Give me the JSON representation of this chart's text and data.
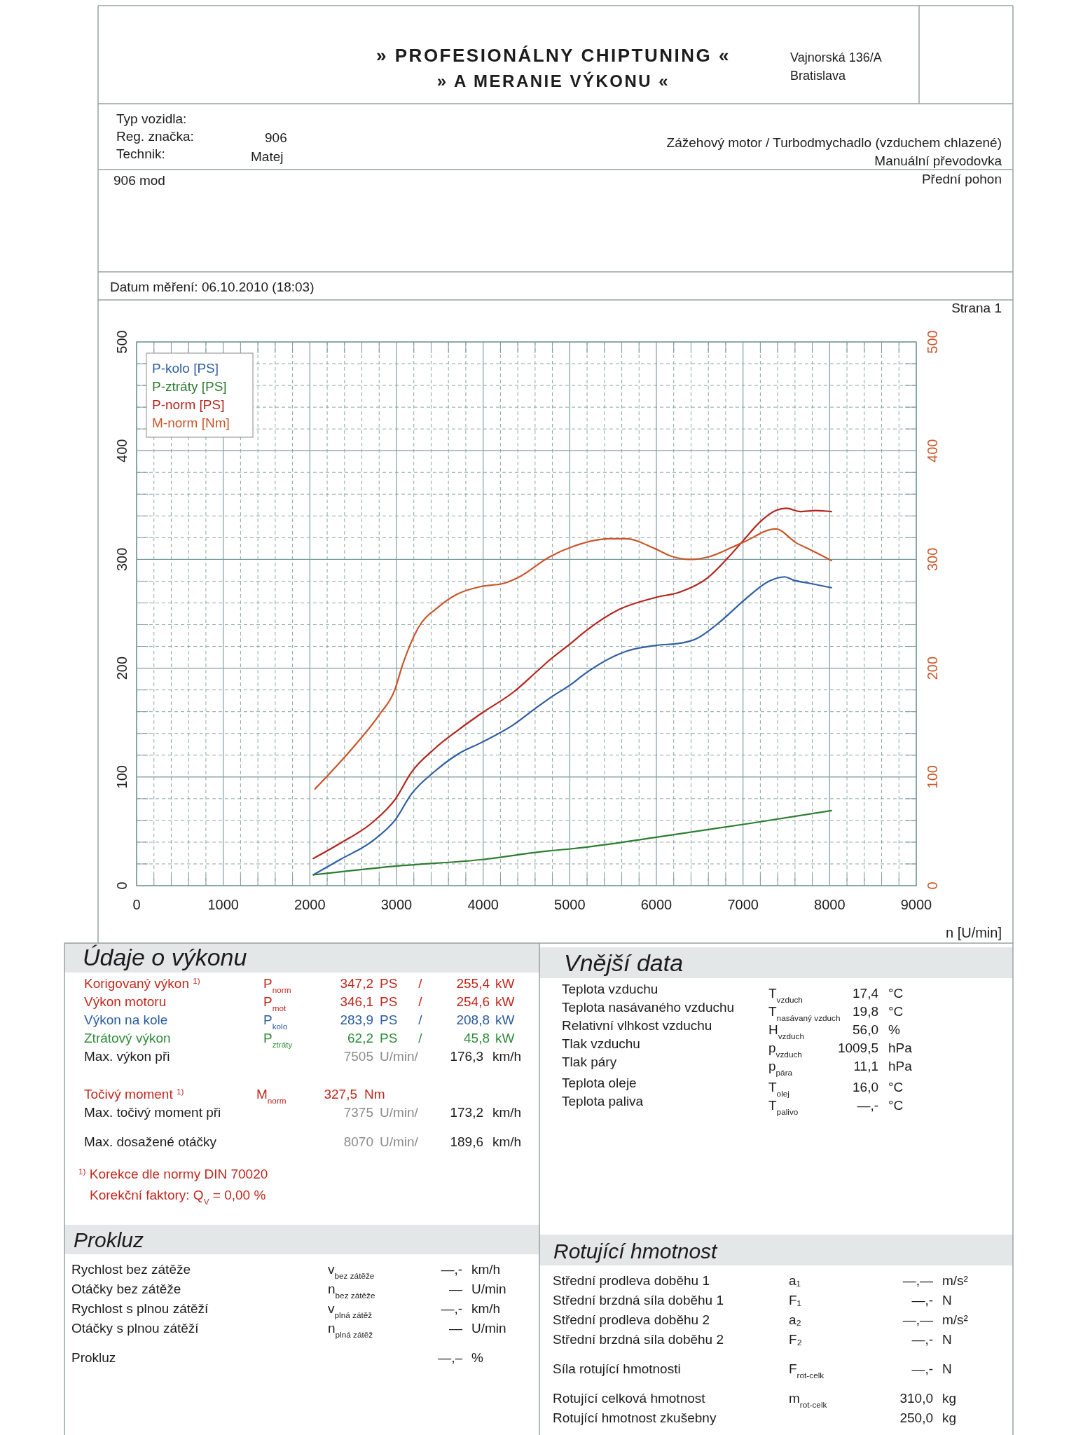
{
  "chart_data": {
    "type": "line",
    "title": "» PROFESIONÁLNY CHIPTUNING «",
    "subtitle": "» A MERANIE VÝKONU «",
    "xlabel": "n [U/min]",
    "xlim": [
      0,
      9000
    ],
    "xticks": [
      0,
      {
        "value": 200,
        "label": null
      },
      {
        "value": 400,
        "label": null
      },
      {
        "value": 600,
        "label": null
      },
      {
        "value": 800,
        "label": null
      },
      1000,
      {
        "value": 1200,
        "label": null
      },
      {
        "value": 1400,
        "label": null
      },
      {
        "value": 1600,
        "label": null
      },
      {
        "value": 1800,
        "label": null
      },
      2000,
      {
        "value": 2200,
        "label": null
      },
      {
        "value": 2400,
        "label": null
      },
      {
        "value": 2600,
        "label": null
      },
      {
        "value": 2800,
        "label": null
      },
      3000,
      {
        "value": 3200,
        "label": null
      },
      {
        "value": 3400,
        "label": null
      },
      {
        "value": 3600,
        "label": null
      },
      {
        "value": 3800,
        "label": null
      },
      4000,
      {
        "value": 4200,
        "label": null
      },
      {
        "value": 4400,
        "label": null
      },
      {
        "value": 4600,
        "label": null
      },
      {
        "value": 4800,
        "label": null
      },
      5000,
      {
        "value": 5200,
        "label": null
      },
      {
        "value": 5400,
        "label": null
      },
      {
        "value": 5600,
        "label": null
      },
      {
        "value": 5800,
        "label": null
      },
      6000,
      {
        "value": 6200,
        "label": null
      },
      {
        "value": 6400,
        "label": null
      },
      {
        "value": 6600,
        "label": null
      },
      {
        "value": 6800,
        "label": null
      },
      7000,
      {
        "value": 7200,
        "label": null
      },
      {
        "value": 7400,
        "label": null
      },
      {
        "value": 7600,
        "label": null
      },
      {
        "value": 7800,
        "label": null
      },
      8000,
      {
        "value": 8200,
        "label": null
      },
      {
        "value": 8400,
        "label": null
      },
      {
        "value": 8600,
        "label": null
      },
      {
        "value": 8800,
        "label": null
      },
      9000
    ],
    "ylim": [
      0,
      500
    ],
    "yticks": [
      0,
      {
        "value": 20,
        "label": null
      },
      {
        "value": 40,
        "label": null
      },
      {
        "value": 60,
        "label": null
      },
      {
        "value": 80,
        "label": null
      },
      100,
      {
        "value": 120,
        "label": null
      },
      {
        "value": 140,
        "label": null
      },
      {
        "value": 160,
        "label": null
      },
      {
        "value": 180,
        "label": null
      },
      200,
      {
        "value": 220,
        "label": null
      },
      {
        "value": 240,
        "label": null
      },
      {
        "value": 260,
        "label": null
      },
      {
        "value": 280,
        "label": null
      },
      300,
      {
        "value": 320,
        "label": null
      },
      {
        "value": 340,
        "label": null
      },
      {
        "value": 360,
        "label": null
      },
      {
        "value": 380,
        "label": null
      },
      400,
      {
        "value": 420,
        "label": null
      },
      {
        "value": 440,
        "label": null
      },
      {
        "value": 460,
        "label": null
      },
      {
        "value": 480,
        "label": null
      },
      500
    ],
    "y2lim": [
      0,
      500
    ],
    "y2ticks": [
      0,
      100,
      200,
      300,
      400,
      500
    ],
    "grid": true,
    "legend": "top left",
    "series": [
      {
        "name": "P-kolo [PS]",
        "color": "#2f5fa0",
        "x": [
          2040,
          2350,
          2720,
          2990,
          3170,
          3440,
          3710,
          3990,
          4350,
          4620,
          4760,
          5030,
          5160,
          5670,
          6000,
          6280,
          6460,
          6740,
          7020,
          7300,
          7480,
          7580,
          7770,
          8020
        ],
        "values": [
          10,
          24,
          41,
          61,
          84,
          105,
          121,
          132,
          148,
          164,
          172,
          186,
          194,
          216,
          221,
          223,
          227,
          243,
          263,
          280,
          284,
          281,
          278,
          274
        ]
      },
      {
        "name": "P-ztráty [PS]",
        "color": "#2d7d32",
        "x": [
          2040,
          2990,
          3990,
          4760,
          5030,
          6040,
          7060,
          8020
        ],
        "values": [
          10,
          18,
          24,
          32,
          34,
          45,
          57,
          69
        ]
      },
      {
        "name": "P-norm [PS]",
        "color": "#b3261e",
        "x": [
          2040,
          2350,
          2720,
          2990,
          3170,
          3440,
          3710,
          3990,
          4350,
          4620,
          4760,
          5030,
          5150,
          5570,
          5990,
          6270,
          6590,
          6820,
          7010,
          7190,
          7380,
          7500,
          7660,
          7840,
          8020
        ],
        "values": [
          25,
          39,
          58,
          80,
          104,
          126,
          143,
          159,
          178,
          197,
          207,
          224,
          232,
          254,
          265,
          270,
          283,
          301,
          318,
          334,
          345,
          347,
          344,
          345,
          344
        ]
      },
      {
        "name": "M-norm [Nm]",
        "color": "#c8572b",
        "axis": "y2",
        "x": [
          2060,
          2530,
          2800,
          2980,
          3070,
          3250,
          3480,
          3700,
          3970,
          4240,
          4420,
          4760,
          5040,
          5460,
          5650,
          5980,
          6170,
          6400,
          6630,
          6870,
          7010,
          7375,
          7620,
          7800,
          8020
        ],
        "values": [
          89,
          130,
          157,
          180,
          203,
          237,
          256,
          268,
          275,
          278,
          284,
          302,
          312,
          319,
          319,
          310,
          303,
          300,
          303,
          311,
          316,
          328,
          315,
          308,
          299
        ]
      }
    ],
    "annotations": [
      "Vajnorská 136/A",
      "Bratislava",
      "Typ vozidla:",
      "Reg. značka:",
      "906",
      "Technik:",
      "Matej",
      "Zážehový motor / Turbodmychadlo (vzduchem chlazené)",
      "Manuální převodovka",
      "Přední pohon",
      "906 mod",
      "Datum měření: 06.10.2010 (18:03)",
      "Strana 1",
      "Údaje o výkonu",
      "Korigovaný výkon $^{1)}$",
      "P$_{norm}$",
      "347,2",
      "PS",
      "/",
      "255,4",
      "kW",
      "Výkon motoru",
      "P$_{mot}$",
      "346,1",
      "PS",
      "/",
      "254,6",
      "kW",
      "Výkon na kole",
      "P$_{kolo}$",
      "283,9",
      "PS",
      "/",
      "208,8",
      "kW",
      "Ztrátový výkon",
      "P$_{ztráty}$",
      "62,2",
      "PS",
      "/",
      "45,8",
      "kW",
      "Max. výkon při",
      "7505",
      "U/min/",
      "176,3",
      "km/h",
      "Točivý moment $^{1)}$",
      "M$_{norm}$",
      "327,5",
      "Nm",
      "Max. točivý moment při",
      "7375",
      "U/min/",
      "173,2",
      "km/h",
      "Max. dosažené otáčky",
      "8070",
      "U/min/",
      "189,6",
      "km/h",
      "$^{1)}$ Korekce dle normy DIN 70020",
      "Korekční faktory: Q$_{V}$ =  0,00 %",
      "Vnější data",
      "Teplota vzduchu",
      "T$_{vzduch}$",
      "17,4",
      "°C",
      "Teplota nasávaného vzduchu",
      "T$_{nasávaný vzduch}$",
      "19,8",
      "°C",
      "Relativní vlhkost vzduchu",
      "H$_{vzduch}$",
      "56,0",
      "%",
      "Tlak vzduchu",
      "p$_{vzduch}$",
      "1009,5",
      "hPa",
      "Tlak páry",
      "p$_{pára}$",
      "11,1",
      "hPa",
      "Teplota oleje",
      "T$_{olej}$",
      "16,0",
      "°C",
      "Teplota paliva",
      "T$_{palivo}$",
      "—,-",
      "°C",
      "Prokluz",
      "Rychlost bez zátěže",
      "v$_{bez zátěže}$",
      "—,-",
      "km/h",
      "Otáčky bez zátěže",
      "n$_{bez zátěže}$",
      "—",
      "U/min",
      "Rychlost s plnou zátěží",
      "v$_{plná zátěž}$",
      "—,-",
      "km/h",
      "Otáčky s plnou zátěží",
      "n$_{plná zátěž}$",
      "—",
      "U/min",
      "Prokluz",
      "—,–",
      "%",
      "Rotující hmotnost",
      "Střední prodleva doběhu 1",
      "a₁",
      "—,—",
      "m/s²",
      "Střední brzdná síla doběhu 1",
      "F₁",
      "—,-",
      "N",
      "Střední prodleva doběhu 2",
      "a₂",
      "—,—",
      "m/s²",
      "Střední brzdná síla doběhu 2",
      "F₂",
      "—,-",
      "N",
      "Síla rotující hmotnosti",
      "F$_{rot-celk}$",
      "—,-",
      "N",
      "Rotující celková hmotnost",
      "m$_{rot-celk}$",
      "310,0",
      "kg",
      "Rotující hmotnost zkušebny",
      "250,0",
      "kg"
    ]
  }
}
